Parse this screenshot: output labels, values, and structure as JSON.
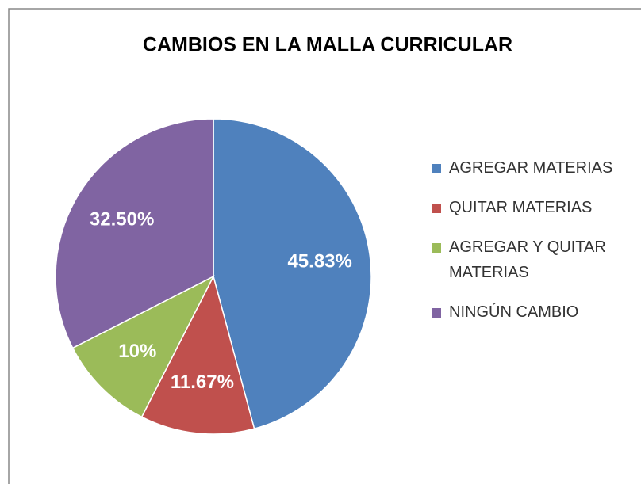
{
  "chart_data": {
    "type": "pie",
    "title": "CAMBIOS EN LA MALLA CURRICULAR",
    "categories": [
      "AGREGAR MATERIAS",
      "QUITAR MATERIAS",
      "AGREGAR Y QUITAR MATERIAS",
      "NINGÚN CAMBIO"
    ],
    "values": [
      45.83,
      11.67,
      10,
      32.5
    ],
    "value_labels": [
      "45.83%",
      "11.67%",
      "10%",
      "32.50%"
    ],
    "colors": [
      "#4f81bd",
      "#c0504d",
      "#9bbb59",
      "#8064a2"
    ],
    "legend": "right"
  }
}
